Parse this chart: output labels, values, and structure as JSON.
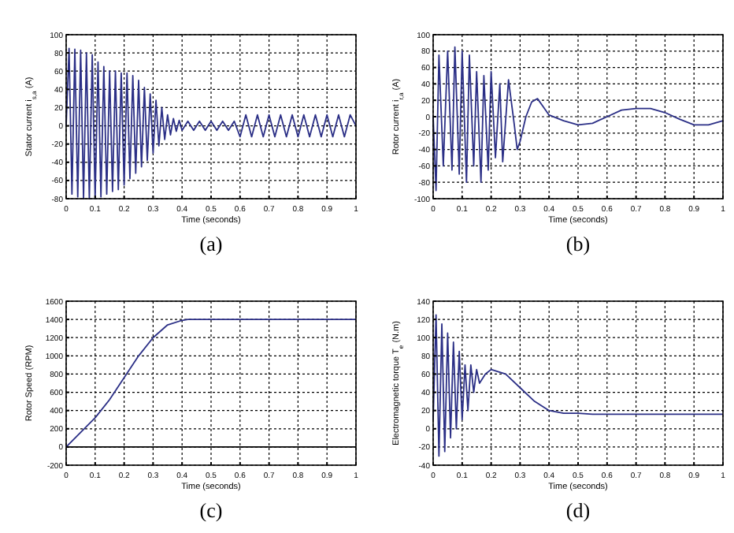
{
  "chart_data": [
    {
      "type": "line",
      "ylabel": "Stator current i$_{s,a}$ (A)",
      "xlabel": "Time (seconds)",
      "annotations": [
        "(a)"
      ],
      "xlim": [
        0,
        1
      ],
      "xticks": [
        0,
        0.1,
        0.2,
        0.3,
        0.4,
        0.5,
        0.6,
        0.7,
        0.8,
        0.9,
        1
      ],
      "ylim": [
        -80,
        100
      ],
      "yticks": [
        -80,
        -60,
        -40,
        -20,
        0,
        20,
        40,
        60,
        80,
        100
      ],
      "grid": true,
      "series": [
        {
          "color": "#2b2f86",
          "x": [
            0,
            0.01,
            0.02,
            0.03,
            0.04,
            0.05,
            0.06,
            0.07,
            0.08,
            0.09,
            0.1,
            0.11,
            0.12,
            0.13,
            0.14,
            0.15,
            0.16,
            0.17,
            0.18,
            0.19,
            0.2,
            0.21,
            0.22,
            0.23,
            0.24,
            0.25,
            0.26,
            0.27,
            0.28,
            0.29,
            0.3,
            0.31,
            0.32,
            0.33,
            0.34,
            0.35,
            0.36,
            0.37,
            0.38,
            0.39,
            0.4,
            0.42,
            0.44,
            0.46,
            0.48,
            0.5,
            0.52,
            0.54,
            0.56,
            0.58,
            0.6,
            0.62,
            0.64,
            0.66,
            0.68,
            0.7,
            0.72,
            0.74,
            0.76,
            0.78,
            0.8,
            0.82,
            0.84,
            0.86,
            0.88,
            0.9,
            0.92,
            0.94,
            0.96,
            0.98,
            1
          ],
          "values": [
            0,
            85,
            -75,
            84,
            -78,
            83,
            -80,
            80,
            -80,
            78,
            -80,
            70,
            -78,
            65,
            -75,
            60,
            -72,
            60,
            -70,
            58,
            -65,
            58,
            -58,
            55,
            -52,
            50,
            -45,
            42,
            -38,
            35,
            -30,
            28,
            -22,
            20,
            -15,
            12,
            -10,
            8,
            -6,
            6,
            -5,
            5,
            -5,
            5,
            -5,
            5,
            -5,
            5,
            -5,
            5,
            -12,
            12,
            -12,
            12,
            -12,
            12,
            -12,
            12,
            -12,
            12,
            -12,
            12,
            -12,
            12,
            -12,
            12,
            -12,
            12,
            -12,
            12,
            0
          ]
        }
      ]
    },
    {
      "type": "line",
      "ylabel": "Rotor current i$_{r,a}$ (A)",
      "xlabel": "Time (seconds)",
      "annotations": [
        "(b)"
      ],
      "xlim": [
        0,
        1
      ],
      "xticks": [
        0,
        0.1,
        0.2,
        0.3,
        0.4,
        0.5,
        0.6,
        0.7,
        0.8,
        0.9,
        1
      ],
      "ylim": [
        -100,
        100
      ],
      "yticks": [
        -100,
        -80,
        -60,
        -40,
        -20,
        0,
        20,
        40,
        60,
        80,
        100
      ],
      "grid": true,
      "series": [
        {
          "color": "#2b2f86",
          "x": [
            0,
            0.01,
            0.02,
            0.035,
            0.05,
            0.065,
            0.075,
            0.09,
            0.1,
            0.115,
            0.125,
            0.14,
            0.15,
            0.165,
            0.175,
            0.19,
            0.2,
            0.215,
            0.23,
            0.24,
            0.26,
            0.28,
            0.29,
            0.3,
            0.32,
            0.34,
            0.36,
            0.38,
            0.4,
            0.45,
            0.5,
            0.55,
            0.6,
            0.65,
            0.7,
            0.75,
            0.8,
            0.85,
            0.9,
            0.95,
            1
          ],
          "values": [
            0,
            -90,
            75,
            -60,
            80,
            -65,
            85,
            -70,
            80,
            -80,
            75,
            -60,
            55,
            -80,
            50,
            -65,
            55,
            -50,
            40,
            -55,
            45,
            -10,
            -40,
            -30,
            0,
            18,
            22,
            12,
            2,
            -5,
            -10,
            -8,
            0,
            8,
            10,
            10,
            5,
            -3,
            -10,
            -10,
            -5
          ]
        }
      ]
    },
    {
      "type": "line",
      "ylabel": "Rotor Speed (RPM)",
      "xlabel": "Time (seconds)",
      "annotations": [
        "(c)"
      ],
      "xlim": [
        0,
        1
      ],
      "xticks": [
        0,
        0.1,
        0.2,
        0.3,
        0.4,
        0.5,
        0.6,
        0.7,
        0.8,
        0.9,
        1
      ],
      "ylim": [
        -200,
        1600
      ],
      "yticks": [
        -200,
        0,
        200,
        400,
        600,
        800,
        1000,
        1200,
        1400,
        1600
      ],
      "grid": true,
      "ref_lines": [
        {
          "axis": "y",
          "value": 0,
          "color": "#000000"
        }
      ],
      "series": [
        {
          "color": "#2b2f86",
          "x": [
            0,
            0.05,
            0.1,
            0.15,
            0.2,
            0.25,
            0.3,
            0.35,
            0.4,
            0.42,
            1
          ],
          "values": [
            0,
            160,
            320,
            520,
            760,
            1000,
            1200,
            1340,
            1390,
            1400,
            1400
          ]
        }
      ]
    },
    {
      "type": "line",
      "ylabel": "Electromagnetic torque T$_{e}$ (N.m)",
      "xlabel": "Time (seconds)",
      "annotations": [
        "(d)"
      ],
      "xlim": [
        0,
        1
      ],
      "xticks": [
        0,
        0.1,
        0.2,
        0.3,
        0.4,
        0.5,
        0.6,
        0.7,
        0.8,
        0.9,
        1
      ],
      "ylim": [
        -40,
        140
      ],
      "yticks": [
        -40,
        -20,
        0,
        20,
        40,
        60,
        80,
        100,
        120,
        140
      ],
      "grid": true,
      "series": [
        {
          "color": "#2b2f86",
          "x": [
            0,
            0.01,
            0.02,
            0.03,
            0.04,
            0.05,
            0.06,
            0.07,
            0.08,
            0.09,
            0.1,
            0.11,
            0.12,
            0.13,
            0.14,
            0.15,
            0.16,
            0.18,
            0.2,
            0.25,
            0.3,
            0.35,
            0.4,
            0.45,
            0.5,
            0.55,
            0.6,
            0.65,
            0.7,
            0.75,
            0.8,
            0.85,
            0.9,
            0.95,
            1
          ],
          "values": [
            10,
            125,
            -30,
            115,
            -25,
            105,
            -10,
            95,
            0,
            85,
            10,
            70,
            20,
            70,
            40,
            65,
            50,
            60,
            65,
            60,
            45,
            30,
            20,
            17,
            17,
            16,
            16,
            16,
            16,
            16,
            16,
            16,
            16,
            16,
            16
          ]
        }
      ]
    }
  ]
}
